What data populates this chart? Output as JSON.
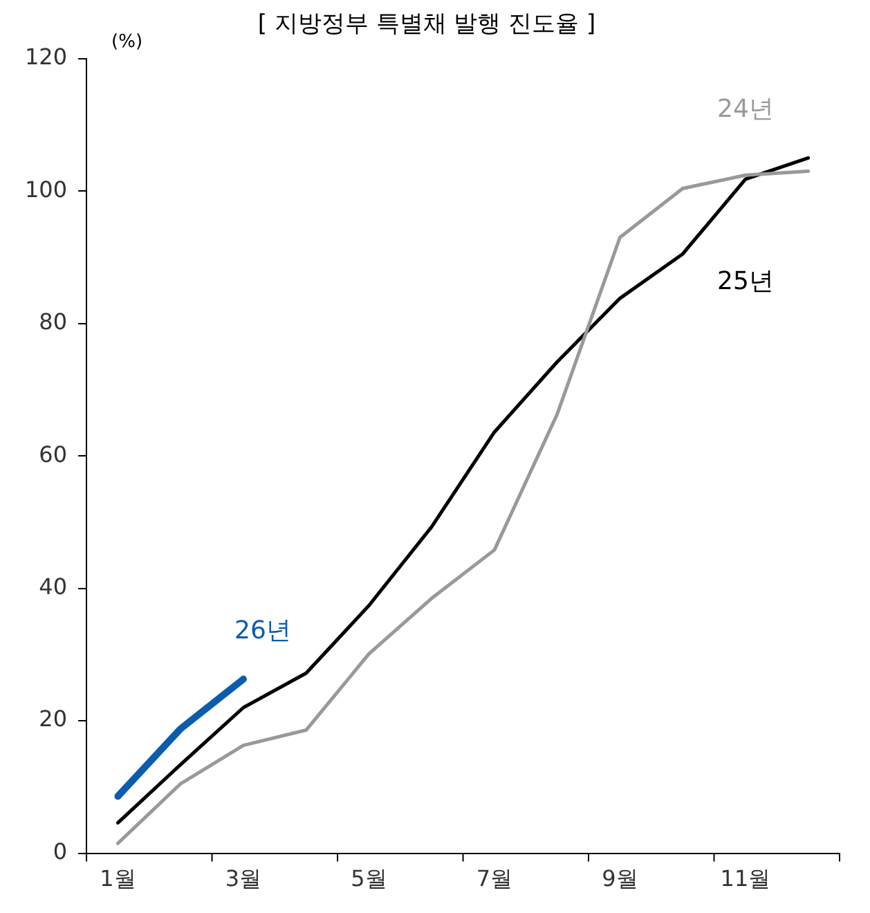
{
  "chart_data": {
    "type": "line",
    "title": "[ 지방정부 특별채 발행 진도율 ]",
    "ylabel": "(%)",
    "categories": [
      "1월",
      null,
      "3월",
      null,
      "5월",
      null,
      "7월",
      null,
      "9월",
      null,
      "11월",
      null
    ],
    "series": [
      {
        "name": "24년",
        "color": "#999999",
        "values": [
          1.5,
          10.5,
          16.3,
          18.6,
          30.1,
          38.5,
          45.8,
          66.3,
          93,
          100.4,
          102.4,
          103
        ]
      },
      {
        "name": "25년",
        "color": "#000000",
        "values": [
          4.6,
          13.4,
          22,
          27.2,
          37.4,
          49.3,
          63.6,
          74.2,
          83.8,
          90.5,
          101.8,
          105
        ]
      },
      {
        "name": "26년",
        "color": "#0b5cad",
        "values": [
          8.6,
          18.8,
          26.3,
          null,
          null,
          null,
          null,
          null,
          null,
          null,
          null,
          null
        ]
      }
    ],
    "ylim": [
      0,
      120
    ],
    "yticks": [
      0,
      20,
      40,
      60,
      80,
      100,
      120
    ],
    "grid": false,
    "legend": false,
    "marker": "none",
    "line_style": "solid"
  }
}
